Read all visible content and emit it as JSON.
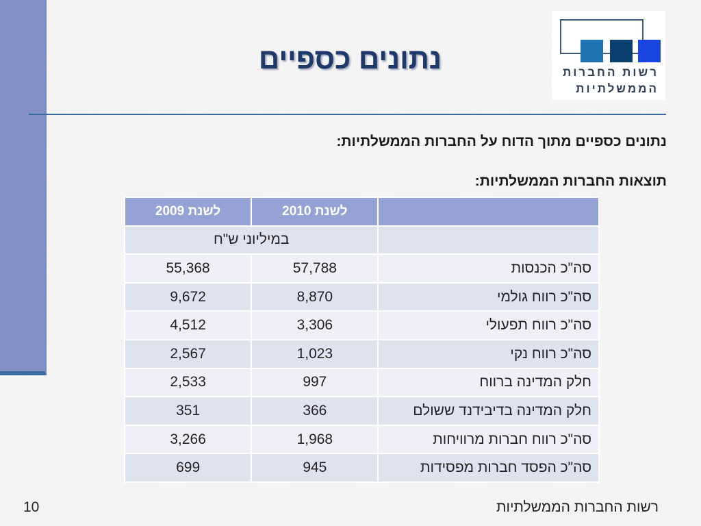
{
  "title": "נתונים כספיים",
  "logo": {
    "line1": "רשות החברות",
    "line2": "הממשלתיות",
    "colors": [
      "#1f73b3",
      "#0b3f6e",
      "#1a44e0"
    ]
  },
  "subtitle1": "נתונים כספיים מתוך הדוח על החברות הממשלתיות:",
  "subtitle2": "תוצאות החברות הממשלתיות:",
  "table": {
    "headers": [
      "",
      "לשנת 2010",
      "לשנת 2009"
    ],
    "units": "במיליוני ש\"ח",
    "rows": [
      {
        "label": "סה\"כ הכנסות",
        "y2010": "57,788",
        "y2009": "55,368"
      },
      {
        "label": "סה\"כ רווח גולמי",
        "y2010": "8,870",
        "y2009": "9,672"
      },
      {
        "label": "סה\"כ רווח תפעולי",
        "y2010": "3,306",
        "y2009": "4,512"
      },
      {
        "label": "סה\"כ רווח נקי",
        "y2010": "1,023",
        "y2009": "2,567"
      },
      {
        "label": "חלק המדינה ברווח",
        "y2010": "997",
        "y2009": "2,533"
      },
      {
        "label": "חלק המדינה בדיבידנד ששולם",
        "y2010": "366",
        "y2009": "351"
      },
      {
        "label": "סה\"כ רווח חברות מרוויחות",
        "y2010": "1,968",
        "y2009": "3,266"
      },
      {
        "label": "סה\"כ הפסד חברות מפסידות",
        "y2010": "945",
        "y2009": "699"
      }
    ]
  },
  "footer": {
    "org": "רשות החברות הממשלתיות",
    "page": "10"
  }
}
